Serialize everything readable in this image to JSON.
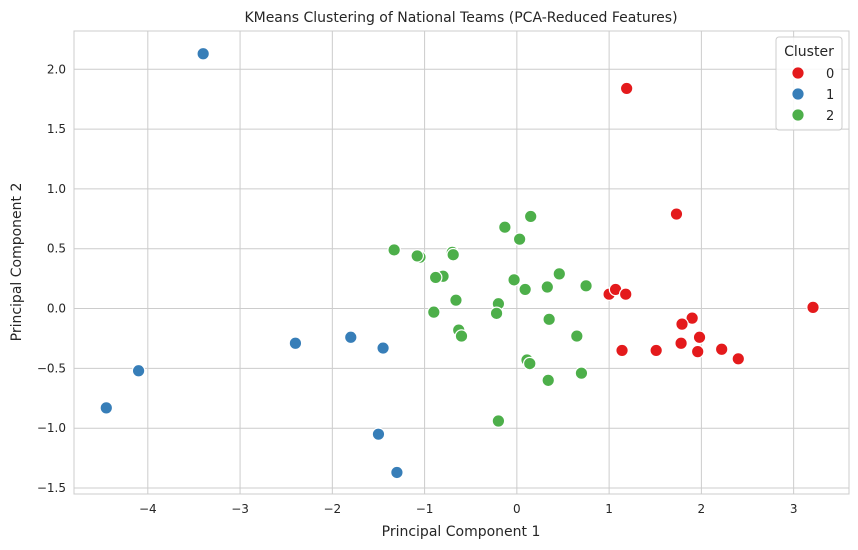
{
  "chart_data": {
    "type": "scatter",
    "title": "KMeans Clustering of National Teams (PCA-Reduced Features)",
    "xlabel": "Principal Component 1",
    "ylabel": "Principal Component 2",
    "xlim": [
      -4.8,
      3.6
    ],
    "ylim": [
      -1.55,
      2.32
    ],
    "xticks": [
      -4,
      -3,
      -2,
      -1,
      0,
      1,
      2,
      3
    ],
    "yticks": [
      -1.5,
      -1.0,
      -0.5,
      0.0,
      0.5,
      1.0,
      1.5,
      2.0
    ],
    "xtick_labels": [
      "−4",
      "−3",
      "−2",
      "−1",
      "0",
      "1",
      "2",
      "3"
    ],
    "ytick_labels": [
      "−1.5",
      "−1.0",
      "−0.5",
      "0.0",
      "0.5",
      "1.0",
      "1.5",
      "2.0"
    ],
    "grid": true,
    "legend": {
      "title": "Cluster",
      "placement": "top-right"
    },
    "series": [
      {
        "name": "0",
        "color": "#e41a1c",
        "points": [
          [
            1.19,
            1.84
          ],
          [
            1.73,
            0.79
          ],
          [
            3.21,
            0.01
          ],
          [
            1.0,
            0.12
          ],
          [
            1.07,
            0.16
          ],
          [
            1.18,
            0.12
          ],
          [
            1.9,
            -0.08
          ],
          [
            1.79,
            -0.13
          ],
          [
            1.98,
            -0.24
          ],
          [
            1.78,
            -0.29
          ],
          [
            1.96,
            -0.36
          ],
          [
            2.22,
            -0.34
          ],
          [
            2.4,
            -0.42
          ],
          [
            1.14,
            -0.35
          ],
          [
            1.51,
            -0.35
          ]
        ]
      },
      {
        "name": "1",
        "color": "#377eb8",
        "points": [
          [
            -3.4,
            2.13
          ],
          [
            -1.8,
            -0.24
          ],
          [
            -2.4,
            -0.29
          ],
          [
            -1.45,
            -0.33
          ],
          [
            -4.1,
            -0.52
          ],
          [
            -4.45,
            -0.83
          ],
          [
            -1.5,
            -1.05
          ],
          [
            -1.3,
            -1.37
          ]
        ]
      },
      {
        "name": "2",
        "color": "#4daf4a",
        "points": [
          [
            0.15,
            0.77
          ],
          [
            -0.13,
            0.68
          ],
          [
            0.03,
            0.58
          ],
          [
            -1.33,
            0.49
          ],
          [
            -0.7,
            0.47
          ],
          [
            -0.69,
            0.45
          ],
          [
            -1.05,
            0.43
          ],
          [
            -1.08,
            0.44
          ],
          [
            -0.8,
            0.27
          ],
          [
            -0.88,
            0.26
          ],
          [
            0.46,
            0.29
          ],
          [
            -0.03,
            0.24
          ],
          [
            0.33,
            0.18
          ],
          [
            0.75,
            0.19
          ],
          [
            0.09,
            0.16
          ],
          [
            -0.66,
            0.07
          ],
          [
            -0.2,
            0.04
          ],
          [
            -0.9,
            -0.03
          ],
          [
            -0.22,
            -0.04
          ],
          [
            0.35,
            -0.09
          ],
          [
            -0.63,
            -0.18
          ],
          [
            -0.6,
            -0.23
          ],
          [
            0.65,
            -0.23
          ],
          [
            0.11,
            -0.43
          ],
          [
            0.14,
            -0.46
          ],
          [
            0.7,
            -0.54
          ],
          [
            0.34,
            -0.6
          ],
          [
            -0.2,
            -0.94
          ]
        ]
      }
    ]
  }
}
